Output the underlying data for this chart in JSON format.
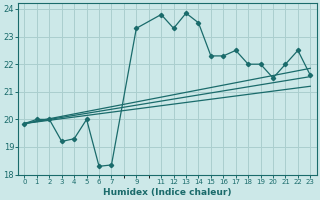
{
  "xlabel": "Humidex (Indice chaleur)",
  "background_color": "#cce8e8",
  "grid_color": "#aacece",
  "line_color": "#1a6b6b",
  "xlim": [
    -0.5,
    23.5
  ],
  "ylim": [
    18,
    24.2
  ],
  "xticks": [
    0,
    1,
    2,
    3,
    4,
    5,
    6,
    7,
    9,
    11,
    12,
    13,
    14,
    15,
    16,
    17,
    18,
    19,
    20,
    21,
    22,
    23
  ],
  "yticks": [
    18,
    19,
    20,
    21,
    22,
    23,
    24
  ],
  "main_x": [
    0,
    1,
    2,
    3,
    4,
    5,
    6,
    7,
    9,
    11,
    12,
    13,
    14,
    15,
    16,
    17,
    18,
    19,
    20,
    21,
    22,
    23
  ],
  "main_y": [
    19.85,
    20.0,
    20.0,
    19.2,
    19.3,
    20.0,
    18.3,
    18.35,
    23.3,
    23.8,
    23.3,
    23.85,
    23.5,
    22.3,
    22.3,
    22.5,
    22.0,
    22.0,
    21.5,
    22.0,
    22.5,
    21.6
  ],
  "line1_x": [
    0,
    23
  ],
  "line1_y": [
    19.85,
    21.55
  ],
  "line2_x": [
    0,
    23
  ],
  "line2_y": [
    19.85,
    21.85
  ],
  "line3_x": [
    0,
    23
  ],
  "line3_y": [
    19.85,
    21.2
  ]
}
